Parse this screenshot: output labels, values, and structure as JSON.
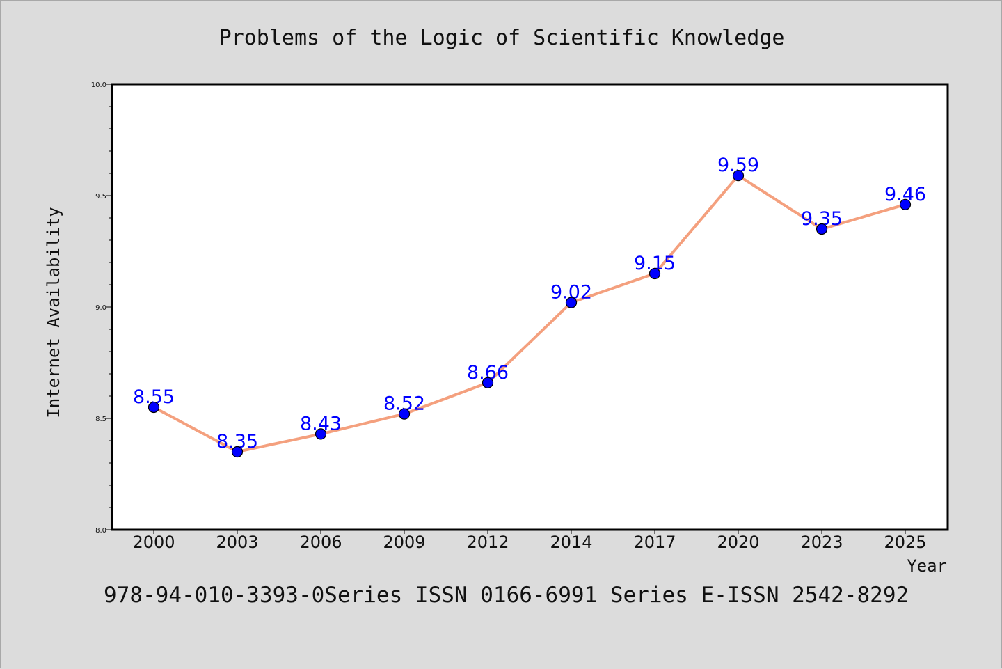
{
  "chart_data": {
    "type": "line",
    "title": "Problems of the Logic of Scientific Knowledge",
    "xlabel": "Year",
    "ylabel": "Internet Availability",
    "categories": [
      "2000",
      "2003",
      "2006",
      "2009",
      "2012",
      "2014",
      "2017",
      "2020",
      "2023",
      "2025"
    ],
    "values": [
      8.55,
      8.35,
      8.43,
      8.52,
      8.66,
      9.02,
      9.15,
      9.59,
      9.35,
      9.46
    ],
    "data_labels": [
      "8.55",
      "8.35",
      "8.43",
      "8.52",
      "8.66",
      "9.02",
      "9.15",
      "9.59",
      "9.35",
      "9.46"
    ],
    "ylim": [
      8.0,
      10.0
    ],
    "yticks": [
      "8.0",
      "8.5",
      "9.0",
      "9.5",
      "10.0"
    ],
    "grid": false,
    "legend": "none",
    "colors": {
      "line": "#f4a07e",
      "marker": "#0000ff",
      "label": "#0000ff",
      "background": "#dcdcdc",
      "plot_area": "#ffffff"
    }
  },
  "footer": "978-94-010-3393-0Series ISSN 0166-6991 Series E-ISSN 2542-8292"
}
